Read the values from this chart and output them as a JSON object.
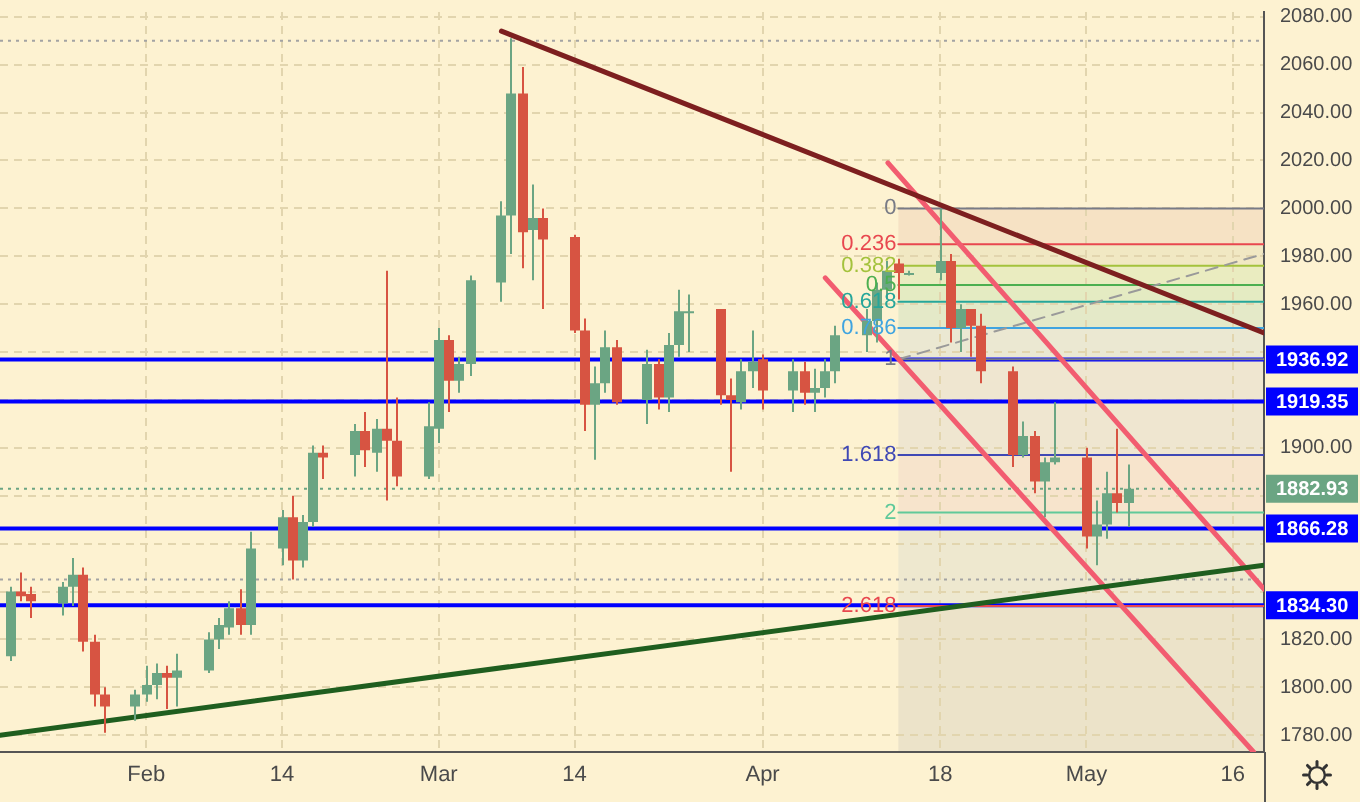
{
  "chart_data": {
    "type": "candlestick",
    "xlim": [
      "--01-18",
      "--05-19"
    ],
    "xticks": [
      {
        "value": "--02-01",
        "label": "Feb"
      },
      {
        "value": "--02-14",
        "label": "14"
      },
      {
        "value": "--03-01",
        "label": "Mar"
      },
      {
        "value": "--03-14",
        "label": "14"
      },
      {
        "value": "--04-01",
        "label": "Apr"
      },
      {
        "value": "--04-18",
        "label": "18"
      },
      {
        "value": "--05-02",
        "label": "May"
      },
      {
        "value": "--05-16",
        "label": "16"
      }
    ],
    "ylim": [
      1773,
      2082
    ],
    "yticks": [
      {
        "value": 1780,
        "label": "1780.00"
      },
      {
        "value": 1800,
        "label": "1800.00"
      },
      {
        "value": 1820,
        "label": "1820.00"
      },
      {
        "value": 1840,
        "label": null
      },
      {
        "value": 1860,
        "label": null
      },
      {
        "value": 1880,
        "label": null
      },
      {
        "value": 1900,
        "label": "1900.00"
      },
      {
        "value": 1920,
        "label": null
      },
      {
        "value": 1940,
        "label": null
      },
      {
        "value": 1960,
        "label": "1960.00"
      },
      {
        "value": 1980,
        "label": "1980.00"
      },
      {
        "value": 2000,
        "label": "2000.00"
      },
      {
        "value": 2020,
        "label": "2020.00"
      },
      {
        "value": 2040,
        "label": "2040.00"
      },
      {
        "value": 2060,
        "label": "2060.00"
      },
      {
        "value": 2080,
        "label": "2080.00"
      }
    ],
    "grid": true,
    "series": [
      {
        "x": [
          "--01-19",
          "--01-20",
          "--01-21",
          "--01-24",
          "--01-25",
          "--01-26",
          "--01-27",
          "--01-28",
          "--01-31",
          "--02-01",
          "--02-02",
          "--02-03",
          "--02-04",
          "--02-07",
          "--02-08",
          "--02-09",
          "--02-10",
          "--02-11",
          "--02-14",
          "--02-15",
          "--02-16",
          "--02-17",
          "--02-18",
          "--02-21",
          "--02-22",
          "--02-23",
          "--02-24",
          "--02-25",
          "--02-28",
          "--03-01",
          "--03-02",
          "--03-03",
          "--03-04",
          "--03-07",
          "--03-08",
          "--03-09",
          "--03-10",
          "--03-11",
          "--03-14",
          "--03-15",
          "--03-16",
          "--03-17",
          "--03-18",
          "--03-21",
          "--03-22",
          "--03-23",
          "--03-24",
          "--03-25",
          "--03-28",
          "--03-29",
          "--03-30",
          "--03-31",
          "--04-01",
          "--04-04",
          "--04-05",
          "--04-06",
          "--04-07",
          "--04-08",
          "--04-11",
          "--04-12",
          "--04-13",
          "--04-14",
          "--04-15",
          "--04-18",
          "--04-19",
          "--04-20",
          "--04-21",
          "--04-22",
          "--04-25",
          "--04-26",
          "--04-27",
          "--04-28",
          "--04-29",
          "--05-02",
          "--05-03",
          "--05-04",
          "--05-05",
          "--05-06"
        ],
        "ohlc": [
          [
            1813,
            1842,
            1811,
            1840
          ],
          [
            1840,
            1848,
            1836,
            1838
          ],
          [
            1839,
            1842,
            1829,
            1836
          ],
          [
            1835,
            1844,
            1830,
            1842
          ],
          [
            1842,
            1854,
            1834,
            1847
          ],
          [
            1847,
            1850,
            1815,
            1819
          ],
          [
            1819,
            1822,
            1792,
            1797
          ],
          [
            1797,
            1800,
            1781,
            1792
          ],
          [
            1792,
            1799,
            1786,
            1797
          ],
          [
            1797,
            1809,
            1794,
            1801
          ],
          [
            1801,
            1810,
            1795,
            1806
          ],
          [
            1806,
            1809,
            1791,
            1804
          ],
          [
            1804,
            1814,
            1792,
            1807
          ],
          [
            1807,
            1823,
            1806,
            1820
          ],
          [
            1820,
            1829,
            1816,
            1826
          ],
          [
            1825,
            1836,
            1822,
            1833
          ],
          [
            1833,
            1841,
            1822,
            1826
          ],
          [
            1826,
            1865,
            1822,
            1858
          ],
          [
            1858,
            1874,
            1851,
            1871
          ],
          [
            1871,
            1880,
            1845,
            1853
          ],
          [
            1853,
            1872,
            1850,
            1869
          ],
          [
            1869,
            1901,
            1867,
            1898
          ],
          [
            1898,
            1901,
            1887,
            1896
          ],
          [
            1897,
            1910,
            1888,
            1907
          ],
          [
            1907,
            1915,
            1892,
            1899
          ],
          [
            1898,
            1912,
            1890,
            1908
          ],
          [
            1908,
            1974,
            1878,
            1903
          ],
          [
            1903,
            1921,
            1884,
            1888
          ],
          [
            1888,
            1919,
            1887,
            1909
          ],
          [
            1908,
            1950,
            1902,
            1945
          ],
          [
            1945,
            1947,
            1915,
            1928
          ],
          [
            1928,
            1938,
            1923,
            1935
          ],
          [
            1935,
            1972,
            1930,
            1970
          ],
          [
            1969,
            2003,
            1961,
            1997
          ],
          [
            1997,
            2071,
            1981,
            2048
          ],
          [
            2048,
            2059,
            1975,
            1990
          ],
          [
            1991,
            2010,
            1970,
            1996
          ],
          [
            1996,
            2000,
            1958,
            1987
          ],
          [
            1988,
            1989,
            1948,
            1949
          ],
          [
            1949,
            1954,
            1907,
            1918
          ],
          [
            1918,
            1934,
            1895,
            1927
          ],
          [
            1927,
            1949,
            1923,
            1942
          ],
          [
            1942,
            1945,
            1918,
            1919
          ],
          [
            1920,
            1941,
            1910,
            1935
          ],
          [
            1935,
            1937,
            1916,
            1921
          ],
          [
            1921,
            1948,
            1915,
            1943
          ],
          [
            1943,
            1966,
            1938,
            1957
          ],
          [
            1957,
            1964,
            1940,
            1957
          ],
          [
            1958,
            1958,
            1918,
            1922
          ],
          [
            1922,
            1929,
            1890,
            1920
          ],
          [
            1919,
            1937,
            1916,
            1932
          ],
          [
            1932,
            1949,
            1925,
            1936
          ],
          [
            1937,
            1939,
            1916,
            1924
          ],
          [
            1924,
            1937,
            1915,
            1932
          ],
          [
            1932,
            1936,
            1918,
            1923
          ],
          [
            1923,
            1933,
            1915,
            1925
          ],
          [
            1925,
            1937,
            1921,
            1932
          ],
          [
            1932,
            1951,
            1927,
            1947
          ],
          [
            1947,
            1958,
            1940,
            1953
          ],
          [
            1953,
            1969,
            1944,
            1966
          ],
          [
            1966,
            1978,
            1962,
            1974
          ],
          [
            1977,
            1979,
            1962,
            1973
          ],
          [
            1973,
            1974,
            1972,
            1973
          ],
          [
            1973,
            2000,
            1970,
            1978
          ],
          [
            1978,
            1981,
            1944,
            1950
          ],
          [
            1950,
            1960,
            1940,
            1958
          ],
          [
            1958,
            1958,
            1938,
            1951
          ],
          [
            1951,
            1956,
            1927,
            1932
          ],
          [
            1932,
            1934,
            1892,
            1897
          ],
          [
            1897,
            1911,
            1896,
            1905
          ],
          [
            1905,
            1907,
            1881,
            1886
          ],
          [
            1886,
            1896,
            1871,
            1894
          ],
          [
            1894,
            1919,
            1893,
            1896
          ],
          [
            1896,
            1900,
            1858,
            1863
          ],
          [
            1863,
            1878,
            1851,
            1868
          ],
          [
            1868,
            1890,
            1862,
            1881
          ],
          [
            1881,
            1908,
            1873,
            1877
          ],
          [
            1877,
            1893,
            1867,
            1882.93
          ]
        ],
        "colors": [
          "#6ba583",
          "#d75442",
          "#d75442",
          "#6ba583",
          "#6ba583",
          "#d75442",
          "#d75442",
          "#d75442",
          "#6ba583",
          "#6ba583",
          "#6ba583",
          "#d75442",
          "#6ba583",
          "#6ba583",
          "#6ba583",
          "#6ba583",
          "#d75442",
          "#6ba583",
          "#6ba583",
          "#d75442",
          "#6ba583",
          "#6ba583",
          "#d75442",
          "#6ba583",
          "#d75442",
          "#6ba583",
          "#d75442",
          "#d75442",
          "#6ba583",
          "#6ba583",
          "#d75442",
          "#6ba583",
          "#6ba583",
          "#6ba583",
          "#6ba583",
          "#d75442",
          "#6ba583",
          "#d75442",
          "#d75442",
          "#d75442",
          "#6ba583",
          "#6ba583",
          "#d75442",
          "#6ba583",
          "#d75442",
          "#6ba583",
          "#6ba583",
          "#6ba583",
          "#d75442",
          "#d75442",
          "#6ba583",
          "#6ba583",
          "#d75442",
          "#6ba583",
          "#d75442",
          "#6ba583",
          "#6ba583",
          "#6ba583",
          "#6ba583",
          "#6ba583",
          "#6ba583",
          "#d75442",
          "#6ba583",
          "#6ba583",
          "#d75442",
          "#6ba583",
          "#d75442",
          "#d75442",
          "#d75442",
          "#6ba583",
          "#d75442",
          "#6ba583",
          "#6ba583",
          "#d75442",
          "#6ba583",
          "#6ba583",
          "#d75442",
          "#6ba583"
        ]
      },
      {
        "type": "line",
        "color": "#7d1f1f",
        "x": [
          "--03-07",
          "--05-19"
        ],
        "values": [
          2074,
          1948
        ]
      },
      {
        "type": "line",
        "color": "#1f5e1f",
        "x": [
          "--01-18",
          "--05-19"
        ],
        "values": [
          1780,
          1851
        ]
      },
      {
        "type": "line",
        "color": "#f25c70",
        "x": [
          "--04-13",
          "--05-19"
        ],
        "values": [
          2019,
          1841
        ]
      },
      {
        "type": "line",
        "color": "#f25c70",
        "x": [
          "--04-07",
          "--05-18"
        ],
        "values": [
          1971,
          1773
        ]
      },
      {
        "type": "line",
        "color": "#9a9a9a",
        "line_style": "dashed",
        "x": [
          "--04-14",
          "--05-19"
        ],
        "values": [
          1937,
          1981
        ]
      },
      {
        "type": "line",
        "name": "0",
        "color": "#787b86",
        "x": [
          "--04-14",
          "--05-19"
        ],
        "values": [
          2000,
          2000
        ]
      },
      {
        "type": "line",
        "name": "0.236",
        "color": "#e8474f",
        "x": [
          "--04-14",
          "--05-19"
        ],
        "values": [
          1985,
          1985
        ]
      },
      {
        "type": "line",
        "name": "0.382",
        "color": "#a4c23c",
        "x": [
          "--04-14",
          "--05-19"
        ],
        "values": [
          1976,
          1976
        ]
      },
      {
        "type": "line",
        "name": "0.5",
        "color": "#4caf50",
        "x": [
          "--04-14",
          "--05-19"
        ],
        "values": [
          1968,
          1968
        ]
      },
      {
        "type": "line",
        "name": "0.618",
        "color": "#26a69a",
        "x": [
          "--04-14",
          "--05-19"
        ],
        "values": [
          1961,
          1961
        ]
      },
      {
        "type": "line",
        "name": "0.786",
        "color": "#3fa4e0",
        "x": [
          "--04-14",
          "--05-19"
        ],
        "values": [
          1950,
          1950
        ]
      },
      {
        "type": "line",
        "name": "1",
        "color": "#787b86",
        "x": [
          "--04-14",
          "--05-19"
        ],
        "values": [
          1937,
          1937
        ]
      },
      {
        "type": "line",
        "name": "1.618",
        "color": "#3f48b5",
        "x": [
          "--04-14",
          "--05-19"
        ],
        "values": [
          1897,
          1897
        ]
      },
      {
        "type": "line",
        "name": "2",
        "color": "#5fc99a",
        "x": [
          "--04-14",
          "--05-19"
        ],
        "values": [
          1873,
          1873
        ]
      },
      {
        "type": "line",
        "name": "2.618",
        "color": "#e8474f",
        "x": [
          "--04-14",
          "--05-19"
        ],
        "values": [
          1834,
          1834
        ]
      }
    ],
    "bands": [
      {
        "axis": "y",
        "from": 2000,
        "to": 1985,
        "color": "#f6e2c4"
      },
      {
        "axis": "y",
        "from": 1985,
        "to": 1976,
        "color": "#f1e8c3"
      },
      {
        "axis": "y",
        "from": 1976,
        "to": 1968,
        "color": "#eaecc0"
      },
      {
        "axis": "y",
        "from": 1968,
        "to": 1961,
        "color": "#e4ebc2"
      },
      {
        "axis": "y",
        "from": 1961,
        "to": 1950,
        "color": "#e4e9c8"
      },
      {
        "axis": "y",
        "from": 1950,
        "to": 1937,
        "color": "#ebe8d2"
      },
      {
        "axis": "y",
        "from": 1937,
        "to": 1897,
        "color": "#efe6d0"
      },
      {
        "axis": "y",
        "from": 1897,
        "to": 1873,
        "color": "#f7e4cc"
      },
      {
        "axis": "y",
        "from": 1873,
        "to": 1834,
        "color": "#eee8cf"
      },
      {
        "axis": "y",
        "from": 1834,
        "to": 1773,
        "color": "#ece3c9"
      }
    ],
    "ref_lines": [
      {
        "axis": "y",
        "value": 2070,
        "color": "#a3a3a3",
        "line_style": "dotted"
      },
      {
        "axis": "y",
        "value": 1845,
        "color": "#a3a3a3",
        "line_style": "dotted"
      },
      {
        "axis": "y",
        "value": 1882.93,
        "label": "1882.93",
        "color": "#6ba583",
        "line_style": "dotted"
      },
      {
        "axis": "y",
        "value": 1936.92,
        "label": "1936.92",
        "color": "#0000ff"
      },
      {
        "axis": "y",
        "value": 1919.35,
        "label": "1919.35",
        "color": "#0000ff"
      },
      {
        "axis": "y",
        "value": 1866.28,
        "label": "1866.28",
        "color": "#0000ff"
      },
      {
        "axis": "y",
        "value": 1834.3,
        "label": "1834.30",
        "color": "#0000ff"
      }
    ]
  }
}
